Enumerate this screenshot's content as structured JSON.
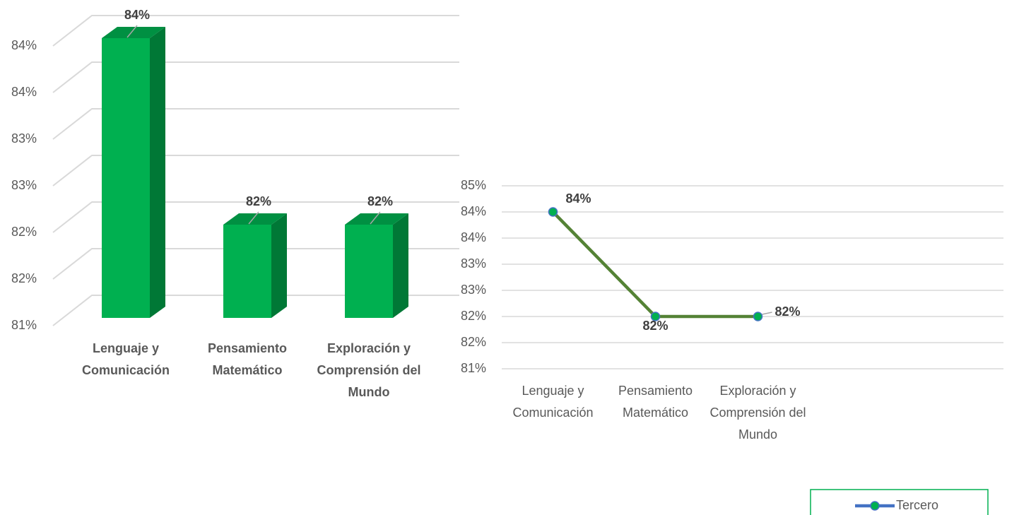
{
  "chart_data": [
    {
      "type": "bar3d",
      "categories": [
        "Lenguaje y Comunicación",
        "Pensamiento Matemático",
        "Exploración y Comprensión del Mundo"
      ],
      "values": [
        84,
        82,
        82
      ],
      "value_labels": [
        "84%",
        "82%",
        "82%"
      ],
      "color": "#00b050",
      "ylim": [
        81,
        84
      ],
      "yticks": [
        {
          "value": 81,
          "label": "81%"
        },
        {
          "value": 81.5,
          "label": "82%"
        },
        {
          "value": 82,
          "label": "82%"
        },
        {
          "value": 82.5,
          "label": "83%"
        },
        {
          "value": 83,
          "label": "83%"
        },
        {
          "value": 83.5,
          "label": "84%"
        },
        {
          "value": 84,
          "label": "84%"
        }
      ],
      "grid": true
    },
    {
      "type": "line",
      "categories": [
        "Lenguaje y Comunicación",
        "Pensamiento Matemático",
        "Exploración y Comprensión del Mundo"
      ],
      "series": [
        {
          "name": "Tercero",
          "color": "#548235",
          "values": [
            84,
            82,
            82
          ],
          "value_labels": [
            "84%",
            "82%",
            "82%"
          ]
        }
      ],
      "ylim": [
        81,
        84.5
      ],
      "yticks": [
        {
          "value": 81,
          "label": "81%"
        },
        {
          "value": 81.5,
          "label": "82%"
        },
        {
          "value": 82,
          "label": "82%"
        },
        {
          "value": 82.5,
          "label": "83%"
        },
        {
          "value": 83,
          "label": "83%"
        },
        {
          "value": 83.5,
          "label": "84%"
        },
        {
          "value": 84,
          "label": "84%"
        },
        {
          "value": 84.5,
          "label": "85%"
        }
      ],
      "grid": true,
      "legend": "bottom-right"
    }
  ]
}
